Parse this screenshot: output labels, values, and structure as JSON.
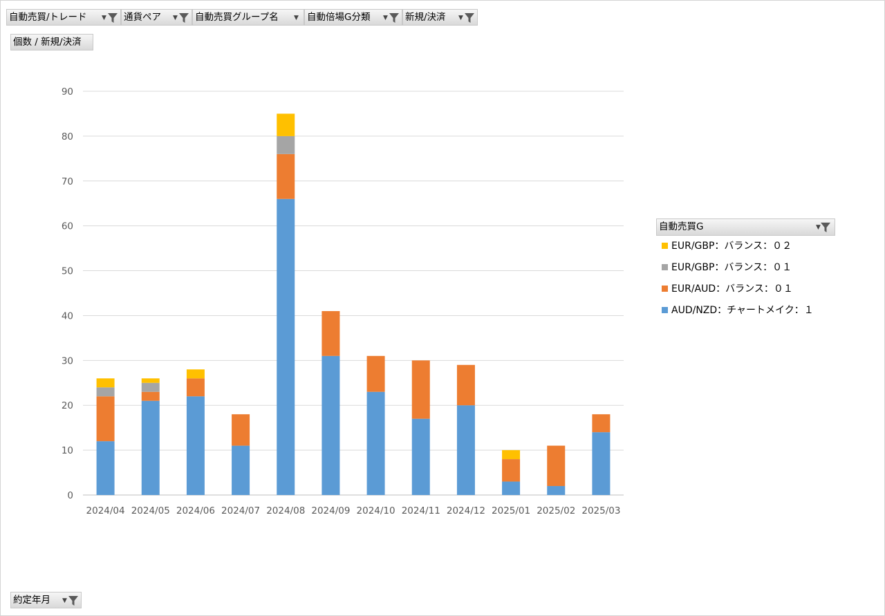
{
  "filter_bar": [
    {
      "label": "自動売買/トレード"
    },
    {
      "label": "通貨ペア"
    },
    {
      "label": "自動売買グループ名"
    },
    {
      "label": "自動倍場G分類"
    },
    {
      "label": "新規/決済"
    }
  ],
  "value_field": {
    "label": "個数 / 新規/決済"
  },
  "axis_field": {
    "label": "約定年月"
  },
  "legend": {
    "title": "自動売買G"
  },
  "colors": {
    "grid": "#d9d9d9",
    "axis_text": "#595959"
  },
  "chart_data": {
    "type": "bar",
    "stacked": true,
    "categories": [
      "2024/04",
      "2024/05",
      "2024/06",
      "2024/07",
      "2024/08",
      "2024/09",
      "2024/10",
      "2024/11",
      "2024/12",
      "2025/01",
      "2025/02",
      "2025/03"
    ],
    "series": [
      {
        "name": "AUD/NZD：チャートメイク：１",
        "color": "#5b9bd5",
        "values": [
          12,
          21,
          22,
          11,
          66,
          31,
          23,
          17,
          20,
          3,
          2,
          14
        ]
      },
      {
        "name": "EUR/AUD：バランス：０１",
        "color": "#ed7d31",
        "values": [
          10,
          2,
          4,
          7,
          10,
          10,
          8,
          13,
          9,
          5,
          9,
          4
        ]
      },
      {
        "name": "EUR/GBP：バランス：０１",
        "color": "#a5a5a5",
        "values": [
          2,
          2,
          0,
          0,
          4,
          0,
          0,
          0,
          0,
          0,
          0,
          0
        ]
      },
      {
        "name": "EUR/GBP：バランス：０２",
        "color": "#ffc000",
        "values": [
          2,
          1,
          2,
          0,
          5,
          0,
          0,
          0,
          0,
          2,
          0,
          0
        ]
      }
    ],
    "ylim": [
      0,
      90
    ],
    "yticks": [
      0,
      10,
      20,
      30,
      40,
      50,
      60,
      70,
      80,
      90
    ],
    "grid": true,
    "legend_position": "right"
  }
}
